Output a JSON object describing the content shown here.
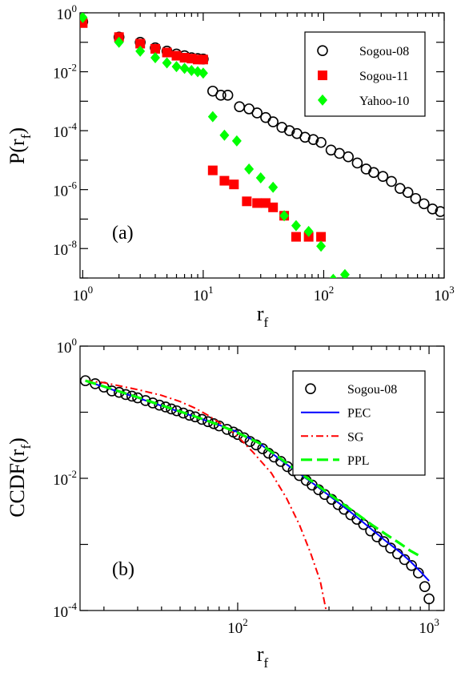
{
  "chart_data": [
    {
      "type": "scatter",
      "panel_label": "(a)",
      "xlabel": {
        "main": "r",
        "sub": "f"
      },
      "ylabel": {
        "prefix": "P(r",
        "sub": "f",
        "suffix": ")"
      },
      "xscale": "log",
      "yscale": "log",
      "xlim": [
        0.95,
        1000
      ],
      "ylim": [
        1e-09,
        1
      ],
      "xticks": [
        {
          "value": 1,
          "base": "10",
          "exp": "0"
        },
        {
          "value": 10,
          "base": "10",
          "exp": "1"
        },
        {
          "value": 100,
          "base": "10",
          "exp": "2"
        },
        {
          "value": 1000,
          "base": "10",
          "exp": "3"
        }
      ],
      "yticks": [
        {
          "value": 1,
          "base": "10",
          "exp": "0"
        },
        {
          "value": 0.01,
          "base": "10",
          "exp": "-2"
        },
        {
          "value": 0.0001,
          "base": "10",
          "exp": "-4"
        },
        {
          "value": 1e-06,
          "base": "10",
          "exp": "-6"
        },
        {
          "value": 1e-08,
          "base": "10",
          "exp": "-8"
        }
      ],
      "grid": false,
      "legend_position": "top-right",
      "series": [
        {
          "name": "Sogou-08",
          "marker": "open-circle",
          "color": "#000000",
          "points": [
            [
              1,
              0.5
            ],
            [
              2,
              0.15
            ],
            [
              3,
              0.1
            ],
            [
              4,
              0.065
            ],
            [
              5,
              0.05
            ],
            [
              6,
              0.04
            ],
            [
              7,
              0.035
            ],
            [
              8,
              0.03
            ],
            [
              9,
              0.028
            ],
            [
              10,
              0.027
            ],
            [
              12,
              0.0022
            ],
            [
              14,
              0.0016
            ],
            [
              16,
              0.0016
            ],
            [
              20,
              0.00065
            ],
            [
              24,
              0.00055
            ],
            [
              28,
              0.0004
            ],
            [
              33,
              0.00028
            ],
            [
              38,
              0.0002
            ],
            [
              45,
              0.00013
            ],
            [
              52,
              0.0001
            ],
            [
              60,
              8e-05
            ],
            [
              70,
              6e-05
            ],
            [
              82,
              5e-05
            ],
            [
              95,
              4e-05
            ],
            [
              115,
              2.2e-05
            ],
            [
              135,
              1.7e-05
            ],
            [
              160,
              1.3e-05
            ],
            [
              190,
              8e-06
            ],
            [
              225,
              5e-06
            ],
            [
              260,
              3.8e-06
            ],
            [
              310,
              2.8e-06
            ],
            [
              365,
              1.9e-06
            ],
            [
              430,
              1.1e-06
            ],
            [
              500,
              8e-07
            ],
            [
              580,
              5e-07
            ],
            [
              680,
              3.3e-07
            ],
            [
              800,
              2.2e-07
            ],
            [
              930,
              1.8e-07
            ]
          ]
        },
        {
          "name": "Sogou-11",
          "marker": "filled-square",
          "color": "#ff0000",
          "points": [
            [
              1,
              0.45
            ],
            [
              2,
              0.15
            ],
            [
              3,
              0.09
            ],
            [
              4,
              0.06
            ],
            [
              5,
              0.045
            ],
            [
              6,
              0.035
            ],
            [
              7,
              0.03
            ],
            [
              8,
              0.028
            ],
            [
              9,
              0.026
            ],
            [
              10,
              0.026
            ],
            [
              12,
              4.5e-06
            ],
            [
              15,
              2e-06
            ],
            [
              18,
              1.5e-06
            ],
            [
              23,
              4e-07
            ],
            [
              28,
              3.5e-07
            ],
            [
              33,
              3.5e-07
            ],
            [
              38,
              2.5e-07
            ],
            [
              47,
              1.3e-07
            ],
            [
              59,
              2.5e-08
            ],
            [
              75,
              2.5e-08
            ],
            [
              95,
              2.5e-08
            ]
          ]
        },
        {
          "name": "Yahoo-10",
          "marker": "filled-diamond",
          "color": "#00ff00",
          "points": [
            [
              1,
              0.7
            ],
            [
              2,
              0.1
            ],
            [
              3,
              0.05
            ],
            [
              4,
              0.03
            ],
            [
              5,
              0.02
            ],
            [
              6,
              0.015
            ],
            [
              7,
              0.013
            ],
            [
              8,
              0.011
            ],
            [
              9,
              0.01
            ],
            [
              10,
              0.009
            ],
            [
              12,
              0.0003
            ],
            [
              15,
              7e-05
            ],
            [
              19,
              4.5e-05
            ],
            [
              24,
              5e-06
            ],
            [
              30,
              2.5e-06
            ],
            [
              38,
              1.2e-06
            ],
            [
              47,
              1.3e-07
            ],
            [
              59,
              6e-08
            ],
            [
              75,
              3.8e-08
            ],
            [
              95,
              1.2e-08
            ],
            [
              120,
              9e-10
            ],
            [
              150,
              1.3e-09
            ]
          ]
        }
      ]
    },
    {
      "type": "scatter",
      "panel_label": "(b)",
      "xlabel": {
        "main": "r",
        "sub": "f"
      },
      "ylabel": {
        "prefix": "CCDF(r",
        "sub": "f",
        "suffix": ")"
      },
      "xscale": "log",
      "yscale": "log",
      "xlim": [
        15,
        1200
      ],
      "ylim": [
        0.0001,
        1
      ],
      "xticks": [
        {
          "value": 100,
          "base": "10",
          "exp": "2"
        },
        {
          "value": 1000,
          "base": "10",
          "exp": "3"
        }
      ],
      "yticks": [
        {
          "value": 1,
          "base": "10",
          "exp": "0"
        },
        {
          "value": 0.01,
          "base": "10",
          "exp": "-2"
        },
        {
          "value": 0.0001,
          "base": "10",
          "exp": "-4"
        }
      ],
      "grid": false,
      "legend_position": "top-right",
      "series": [
        {
          "name": "Sogou-08",
          "marker": "open-circle",
          "color": "#000000",
          "points": [
            [
              16,
              0.3
            ],
            [
              18,
              0.27
            ],
            [
              20,
              0.24
            ],
            [
              22,
              0.21
            ],
            [
              24,
              0.2
            ],
            [
              26,
              0.185
            ],
            [
              28,
              0.175
            ],
            [
              30,
              0.165
            ],
            [
              33,
              0.15
            ],
            [
              36,
              0.138
            ],
            [
              39,
              0.128
            ],
            [
              42,
              0.12
            ],
            [
              45,
              0.112
            ],
            [
              48,
              0.105
            ],
            [
              52,
              0.097
            ],
            [
              56,
              0.09
            ],
            [
              60,
              0.085
            ],
            [
              65,
              0.078
            ],
            [
              70,
              0.072
            ],
            [
              75,
              0.067
            ],
            [
              80,
              0.062
            ],
            [
              88,
              0.055
            ],
            [
              95,
              0.05
            ],
            [
              100,
              0.046
            ],
            [
              108,
              0.041
            ],
            [
              116,
              0.036
            ],
            [
              125,
              0.032
            ],
            [
              135,
              0.028
            ],
            [
              145,
              0.024
            ],
            [
              155,
              0.021
            ],
            [
              168,
              0.018
            ],
            [
              182,
              0.015
            ],
            [
              195,
              0.013
            ],
            [
              210,
              0.011
            ],
            [
              228,
              0.0093
            ],
            [
              245,
              0.0079
            ],
            [
              265,
              0.0067
            ],
            [
              285,
              0.0057
            ],
            [
              310,
              0.0048
            ],
            [
              335,
              0.004
            ],
            [
              360,
              0.0034
            ],
            [
              390,
              0.0028
            ],
            [
              420,
              0.0024
            ],
            [
              455,
              0.002
            ],
            [
              495,
              0.0016
            ],
            [
              535,
              0.0013
            ],
            [
              580,
              0.0011
            ],
            [
              630,
              0.00088
            ],
            [
              685,
              0.00072
            ],
            [
              745,
              0.00059
            ],
            [
              810,
              0.00048
            ],
            [
              880,
              0.00037
            ],
            [
              950,
              0.00023
            ],
            [
              1000,
              0.00015
            ]
          ]
        },
        {
          "name": "PEC",
          "line": "solid",
          "color": "#0000ff",
          "points": [
            [
              16,
              0.3
            ],
            [
              20,
              0.24
            ],
            [
              30,
              0.165
            ],
            [
              40,
              0.125
            ],
            [
              60,
              0.085
            ],
            [
              80,
              0.064
            ],
            [
              100,
              0.05
            ],
            [
              130,
              0.034
            ],
            [
              160,
              0.021
            ],
            [
              200,
              0.013
            ],
            [
              250,
              0.0082
            ],
            [
              300,
              0.0055
            ],
            [
              400,
              0.0029
            ],
            [
              500,
              0.0017
            ],
            [
              600,
              0.0011
            ],
            [
              700,
              0.00078
            ],
            [
              800,
              0.00055
            ],
            [
              900,
              0.00039
            ],
            [
              1000,
              0.00028
            ]
          ]
        },
        {
          "name": "SG",
          "line": "dash-dot",
          "color": "#ff0000",
          "points": [
            [
              16,
              0.3
            ],
            [
              20,
              0.28
            ],
            [
              30,
              0.22
            ],
            [
              40,
              0.18
            ],
            [
              50,
              0.145
            ],
            [
              60,
              0.115
            ],
            [
              70,
              0.09
            ],
            [
              80,
              0.07
            ],
            [
              90,
              0.055
            ],
            [
              100,
              0.043
            ],
            [
              120,
              0.025
            ],
            [
              150,
              0.012
            ],
            [
              180,
              0.005
            ],
            [
              210,
              0.002
            ],
            [
              240,
              0.00075
            ],
            [
              270,
              0.00028
            ],
            [
              290,
              0.0001
            ]
          ]
        },
        {
          "name": "PPL",
          "line": "long-dash",
          "color": "#00ff00",
          "points": [
            [
              16,
              0.3
            ],
            [
              20,
              0.245
            ],
            [
              30,
              0.168
            ],
            [
              40,
              0.127
            ],
            [
              60,
              0.086
            ],
            [
              80,
              0.064
            ],
            [
              100,
              0.049
            ],
            [
              130,
              0.034
            ],
            [
              160,
              0.022
            ],
            [
              200,
              0.0135
            ],
            [
              250,
              0.0086
            ],
            [
              300,
              0.0058
            ],
            [
              400,
              0.0032
            ],
            [
              500,
              0.002
            ],
            [
              600,
              0.0014
            ],
            [
              700,
              0.00105
            ],
            [
              800,
              0.0008
            ],
            [
              900,
              0.00066
            ]
          ]
        }
      ]
    }
  ]
}
